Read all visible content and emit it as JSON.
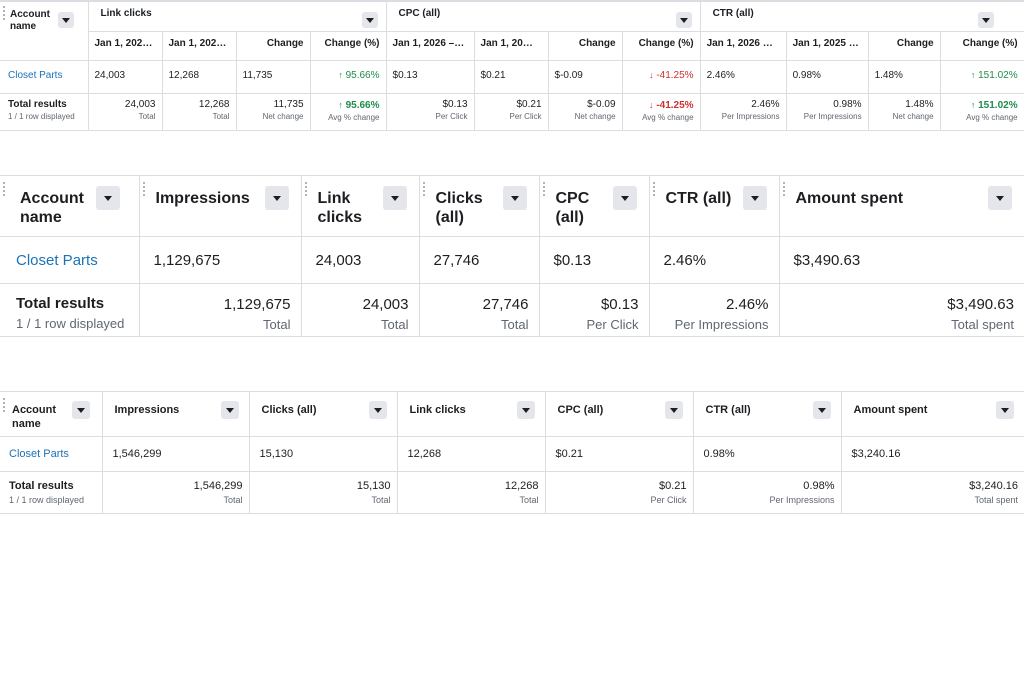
{
  "comparison_table": {
    "account_col": "Account name",
    "groups": [
      {
        "name": "Link clicks",
        "subs": [
          "Jan 1, 202…",
          "Jan 1, 202…",
          "Change",
          "Change (%)"
        ],
        "row": [
          "24,003",
          "12,268",
          "11,735",
          "95.66%"
        ],
        "totals": [
          [
            "24,003",
            "Total"
          ],
          [
            "12,268",
            "Total"
          ],
          [
            "11,735",
            "Net change"
          ],
          [
            "95.66%",
            "Avg % change"
          ]
        ]
      },
      {
        "name": "CPC (all)",
        "subs": [
          "Jan 1, 2026 –…",
          "Jan 1, 20…",
          "Change",
          "Change (%)"
        ],
        "row": [
          "$0.13",
          "$0.21",
          "$-0.09",
          "-41.25%"
        ],
        "totals": [
          [
            "$0.13",
            "Per Click"
          ],
          [
            "$0.21",
            "Per Click"
          ],
          [
            "$-0.09",
            "Net change"
          ],
          [
            "-41.25%",
            "Avg % change"
          ]
        ]
      },
      {
        "name": "CTR (all)",
        "subs": [
          "Jan 1, 2026 …",
          "Jan 1, 2025 …",
          "Change",
          "Change (%)"
        ],
        "row": [
          "2.46%",
          "0.98%",
          "1.48%",
          "151.02%"
        ],
        "totals": [
          [
            "2.46%",
            "Per Impressions"
          ],
          [
            "0.98%",
            "Per Impressions"
          ],
          [
            "1.48%",
            "Net change"
          ],
          [
            "151.02%",
            "Avg % change"
          ]
        ]
      }
    ],
    "account": "Closet Parts",
    "total_label": "Total results",
    "rows_displayed": "1 / 1 row displayed",
    "arrow_up": "↑",
    "arrow_down": "↓"
  },
  "current_table": {
    "headers": [
      "Account name",
      "Impressions",
      "Link clicks",
      "Clicks (all)",
      "CPC (all)",
      "CTR (all)",
      "Amount spent"
    ],
    "account": "Closet Parts",
    "row": [
      "1,129,675",
      "24,003",
      "27,746",
      "$0.13",
      "2.46%",
      "$3,490.63"
    ],
    "total_label": "Total results",
    "rows_displayed": "1 / 1 row displayed",
    "totals": [
      [
        "1,129,675",
        "Total"
      ],
      [
        "24,003",
        "Total"
      ],
      [
        "27,746",
        "Total"
      ],
      [
        "$0.13",
        "Per Click"
      ],
      [
        "2.46%",
        "Per Impressions"
      ],
      [
        "$3,490.63",
        "Total spent"
      ]
    ]
  },
  "baseline_table": {
    "headers": [
      "Account name",
      "Impressions",
      "Clicks (all)",
      "Link clicks",
      "CPC (all)",
      "CTR (all)",
      "Amount spent"
    ],
    "account": "Closet Parts",
    "row": [
      "1,546,299",
      "15,130",
      "12,268",
      "$0.21",
      "0.98%",
      "$3,240.16"
    ],
    "total_label": "Total results",
    "rows_displayed": "1 / 1 row displayed",
    "totals": [
      [
        "1,546,299",
        "Total"
      ],
      [
        "15,130",
        "Total"
      ],
      [
        "12,268",
        "Total"
      ],
      [
        "$0.21",
        "Per Click"
      ],
      [
        "0.98%",
        "Per Impressions"
      ],
      [
        "$3,240.16",
        "Total spent"
      ]
    ]
  },
  "colors": {
    "link": "#1a73b8",
    "positive": "#1f8b4c",
    "negative": "#d0302f",
    "border": "#dadde1"
  },
  "icons": {
    "dropdown": "chevron-down-icon",
    "drag": "drag-handle-icon",
    "trend_up": "arrow-up-icon",
    "trend_down": "arrow-down-icon"
  }
}
